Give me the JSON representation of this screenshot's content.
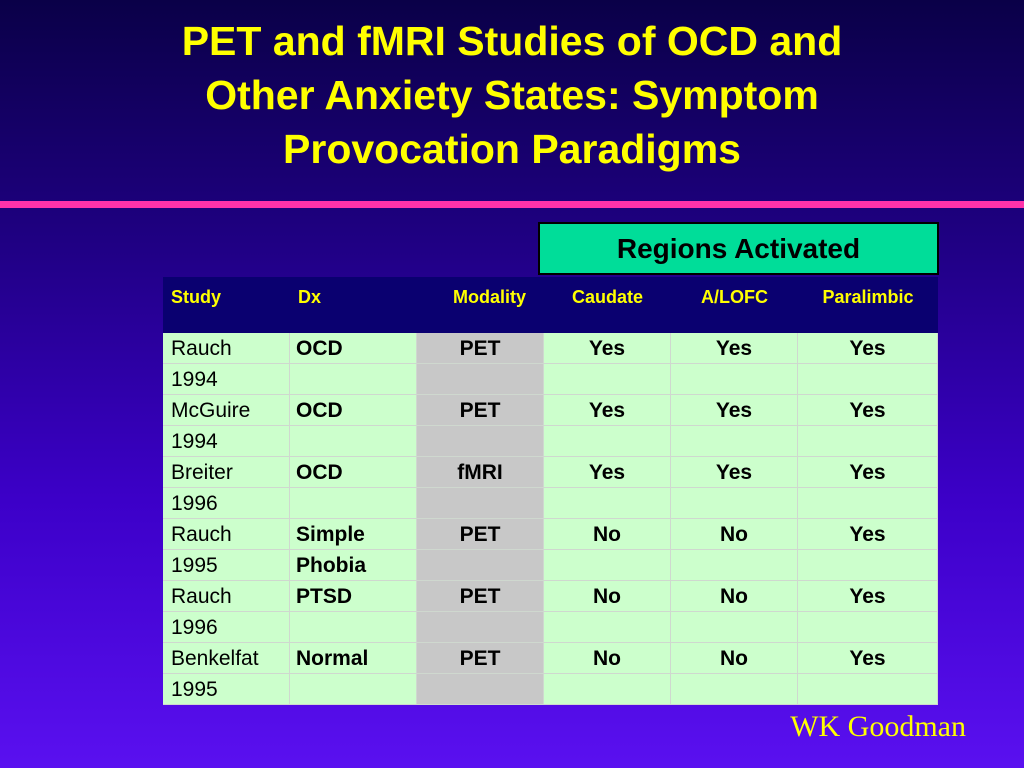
{
  "title": {
    "line1": "PET and fMRI Studies of OCD and",
    "line2": "Other Anxiety States: Symptom",
    "line3": "Provocation Paradigms"
  },
  "regions_label": "Regions Activated",
  "table": {
    "headers": [
      "Study",
      "Dx",
      "Modality",
      "Caudate",
      "A/LOFC",
      "Paralimbic"
    ],
    "rows": [
      [
        "Rauch",
        "OCD",
        "PET",
        "Yes",
        "Yes",
        "Yes"
      ],
      [
        "1994",
        "",
        "",
        "",
        "",
        ""
      ],
      [
        "McGuire",
        "OCD",
        "PET",
        "Yes",
        "Yes",
        "Yes"
      ],
      [
        "1994",
        "",
        "",
        "",
        "",
        ""
      ],
      [
        "Breiter",
        "OCD",
        "fMRI",
        "Yes",
        "Yes",
        "Yes"
      ],
      [
        "1996",
        "",
        "",
        "",
        "",
        ""
      ],
      [
        "Rauch",
        "Simple",
        "PET",
        "No",
        "No",
        "Yes"
      ],
      [
        "1995",
        "Phobia",
        "",
        "",
        "",
        ""
      ],
      [
        "Rauch",
        "PTSD",
        "PET",
        "No",
        "No",
        "Yes"
      ],
      [
        "1996",
        "",
        "",
        "",
        "",
        ""
      ],
      [
        "Benkelfat",
        "Normal",
        "PET",
        "No",
        "No",
        "Yes"
      ],
      [
        "1995",
        "",
        "",
        "",
        "",
        ""
      ]
    ]
  },
  "author": "WK Goodman",
  "colors": {
    "title": "#ffff00",
    "divider": "#ff33aa",
    "regions_box": "#00dd99",
    "header_bg": "#0a0070",
    "cell_green": "#ccffcc",
    "cell_gray": "#c8c8c8"
  }
}
